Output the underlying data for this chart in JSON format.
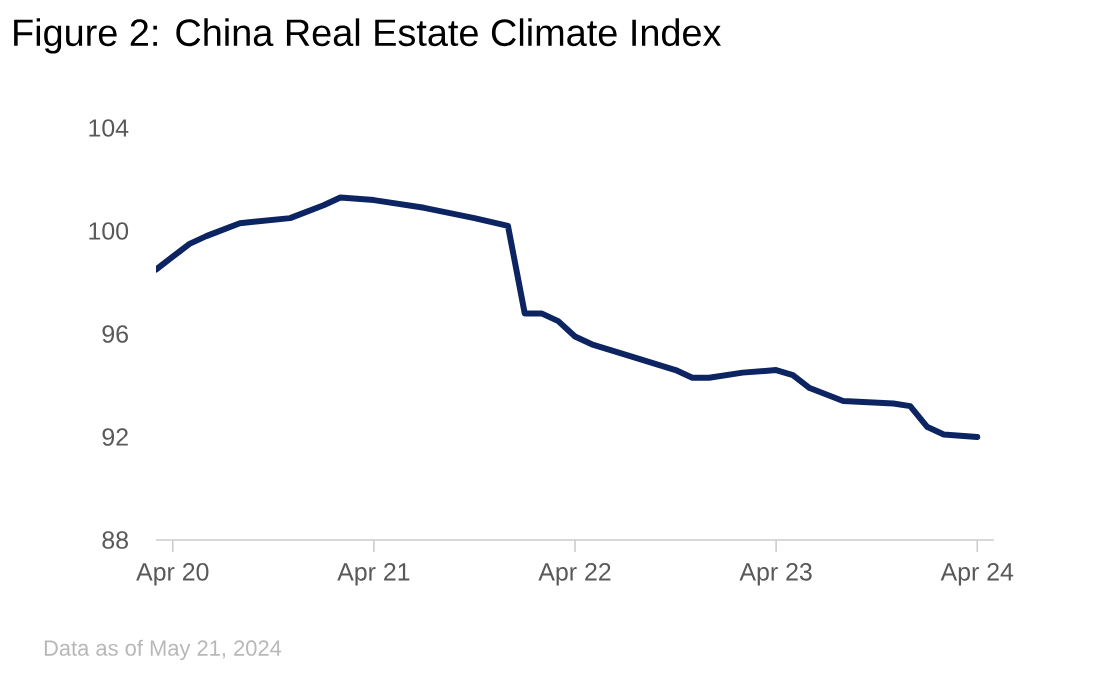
{
  "chart_data": {
    "type": "line",
    "title": "Figure 2: China Real Estate Climate Index",
    "annotations": [
      "Data as of May 21, 2024"
    ],
    "x": [
      "2020-03",
      "2020-04",
      "2020-05",
      "2020-06",
      "2020-08",
      "2020-11",
      "2021-01",
      "2021-02",
      "2021-04",
      "2021-07",
      "2021-10",
      "2021-12",
      "2022-01",
      "2022-02",
      "2022-03",
      "2022-04",
      "2022-05",
      "2022-07",
      "2022-10",
      "2022-11",
      "2022-12",
      "2023-02",
      "2023-04",
      "2023-05",
      "2023-06",
      "2023-08",
      "2023-11",
      "2023-12",
      "2024-01",
      "2024-02",
      "2024-04"
    ],
    "series": [
      {
        "color": "#0c2461",
        "values": [
          98.5,
          99.0,
          99.5,
          99.8,
          100.3,
          100.5,
          101.0,
          101.3,
          101.2,
          100.9,
          100.5,
          100.2,
          96.8,
          96.8,
          96.5,
          95.9,
          95.6,
          95.2,
          94.6,
          94.3,
          94.3,
          94.5,
          94.6,
          94.4,
          93.9,
          93.4,
          93.3,
          93.2,
          92.4,
          92.1,
          92.0
        ]
      }
    ],
    "xlim": [
      "2020-03",
      "2024-05"
    ],
    "xticks": [
      {
        "value": "2020-04",
        "label": "Apr 20"
      },
      {
        "value": "2021-04",
        "label": "Apr 21"
      },
      {
        "value": "2022-04",
        "label": "Apr 22"
      },
      {
        "value": "2023-04",
        "label": "Apr 23"
      },
      {
        "value": "2024-04",
        "label": "Apr 24"
      }
    ],
    "ylim": [
      88,
      104
    ],
    "yticks": [
      88,
      92,
      96,
      100,
      104
    ],
    "grid": false,
    "marker": "none",
    "line_style": "solid"
  }
}
